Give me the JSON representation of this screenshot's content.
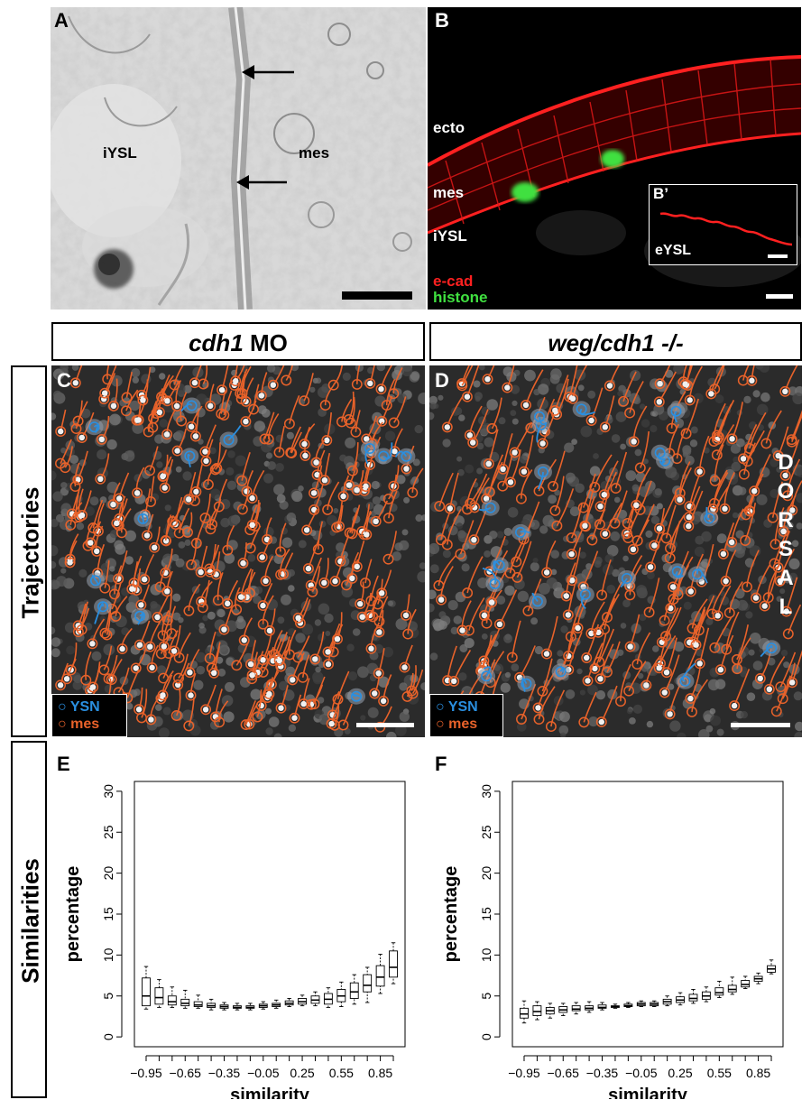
{
  "colors": {
    "trajectory_orange": "#e8622a",
    "trajectory_blue": "#2a8fe0",
    "ecad_red": "#ff2020",
    "histone_green": "#40e040"
  },
  "panelA": {
    "letter": "A",
    "iysl": "iYSL",
    "mes": "mes"
  },
  "panelB": {
    "letter": "B",
    "ecto": "ecto",
    "mes": "mes",
    "iysl": "iYSL",
    "inset_letter": "B’",
    "inset_label": "eYSL",
    "legend_ecad": "e-cad",
    "legend_histone": "histone"
  },
  "headers": {
    "left_bold": "cdh1",
    "left_rest": " MO",
    "right": "weg/cdh1 -/-"
  },
  "rows": {
    "trajectories": "Trajectories",
    "similarities": "Similarities"
  },
  "panelC": {
    "letter": "C",
    "legend_ysn": "YSN",
    "legend_mes": "mes"
  },
  "panelD": {
    "letter": "D",
    "legend_ysn": "YSN",
    "legend_mes": "mes",
    "dorsal": [
      "D",
      "O",
      "R",
      "S",
      "A",
      "L"
    ]
  },
  "chart_data": [
    {
      "panel": "E",
      "type": "box",
      "xlabel": "similarity",
      "ylabel": "percentage",
      "ylim": [
        0,
        30
      ],
      "yticks": [
        0,
        5,
        10,
        15,
        20,
        25,
        30
      ],
      "xtick_labels": [
        "-0.95",
        "-0.65",
        "-0.35",
        "-0.05",
        "0.25",
        "0.55",
        "0.85"
      ],
      "categories": [
        -0.95,
        -0.85,
        -0.75,
        -0.65,
        -0.55,
        -0.45,
        -0.35,
        -0.25,
        -0.15,
        -0.05,
        0.05,
        0.15,
        0.25,
        0.35,
        0.45,
        0.55,
        0.65,
        0.75,
        0.85,
        0.95
      ],
      "boxes": [
        {
          "min": 3.4,
          "q1": 3.8,
          "median": 5.0,
          "q3": 7.2,
          "max": 8.6
        },
        {
          "min": 3.6,
          "q1": 4.0,
          "median": 4.8,
          "q3": 6.0,
          "max": 7.0
        },
        {
          "min": 3.6,
          "q1": 3.9,
          "median": 4.3,
          "q3": 5.0,
          "max": 6.1
        },
        {
          "min": 3.5,
          "q1": 3.8,
          "median": 4.1,
          "q3": 4.6,
          "max": 5.7
        },
        {
          "min": 3.5,
          "q1": 3.7,
          "median": 3.9,
          "q3": 4.3,
          "max": 5.1
        },
        {
          "min": 3.3,
          "q1": 3.6,
          "median": 3.8,
          "q3": 4.1,
          "max": 4.6
        },
        {
          "min": 3.3,
          "q1": 3.5,
          "median": 3.7,
          "q3": 3.9,
          "max": 4.2
        },
        {
          "min": 3.3,
          "q1": 3.5,
          "median": 3.6,
          "q3": 3.8,
          "max": 4.1
        },
        {
          "min": 3.3,
          "q1": 3.5,
          "median": 3.6,
          "q3": 3.8,
          "max": 4.1
        },
        {
          "min": 3.4,
          "q1": 3.6,
          "median": 3.8,
          "q3": 4.0,
          "max": 4.3
        },
        {
          "min": 3.5,
          "q1": 3.7,
          "median": 3.9,
          "q3": 4.1,
          "max": 4.5
        },
        {
          "min": 3.7,
          "q1": 3.9,
          "median": 4.1,
          "q3": 4.4,
          "max": 4.7
        },
        {
          "min": 3.8,
          "q1": 4.0,
          "median": 4.3,
          "q3": 4.7,
          "max": 5.1
        },
        {
          "min": 3.8,
          "q1": 4.1,
          "median": 4.5,
          "q3": 5.0,
          "max": 5.5
        },
        {
          "min": 3.6,
          "q1": 4.0,
          "median": 4.6,
          "q3": 5.3,
          "max": 6.0
        },
        {
          "min": 3.7,
          "q1": 4.3,
          "median": 5.0,
          "q3": 5.8,
          "max": 6.7
        },
        {
          "min": 4.0,
          "q1": 4.7,
          "median": 5.5,
          "q3": 6.6,
          "max": 7.6
        },
        {
          "min": 4.2,
          "q1": 5.5,
          "median": 6.3,
          "q3": 7.6,
          "max": 8.5
        },
        {
          "min": 5.3,
          "q1": 6.2,
          "median": 7.3,
          "q3": 8.7,
          "max": 10.1
        },
        {
          "min": 6.5,
          "q1": 7.3,
          "median": 8.5,
          "q3": 10.5,
          "max": 11.5
        }
      ]
    },
    {
      "panel": "F",
      "type": "box",
      "xlabel": "similarity",
      "ylabel": "percentage",
      "ylim": [
        0,
        30
      ],
      "yticks": [
        0,
        5,
        10,
        15,
        20,
        25,
        30
      ],
      "xtick_labels": [
        "-0.95",
        "-0.65",
        "-0.35",
        "-0.05",
        "0.25",
        "0.55",
        "0.85"
      ],
      "categories": [
        -0.95,
        -0.85,
        -0.75,
        -0.65,
        -0.55,
        -0.45,
        -0.35,
        -0.25,
        -0.15,
        -0.05,
        0.05,
        0.15,
        0.25,
        0.35,
        0.45,
        0.55,
        0.65,
        0.75,
        0.85,
        0.95
      ],
      "boxes": [
        {
          "min": 1.7,
          "q1": 2.3,
          "median": 2.8,
          "q3": 3.5,
          "max": 4.4
        },
        {
          "min": 2.1,
          "q1": 2.6,
          "median": 3.1,
          "q3": 3.8,
          "max": 4.3
        },
        {
          "min": 2.3,
          "q1": 2.8,
          "median": 3.2,
          "q3": 3.6,
          "max": 4.1
        },
        {
          "min": 2.6,
          "q1": 3.0,
          "median": 3.3,
          "q3": 3.7,
          "max": 4.1
        },
        {
          "min": 2.8,
          "q1": 3.2,
          "median": 3.4,
          "q3": 3.8,
          "max": 4.2
        },
        {
          "min": 3.0,
          "q1": 3.3,
          "median": 3.5,
          "q3": 3.8,
          "max": 4.3
        },
        {
          "min": 3.3,
          "q1": 3.5,
          "median": 3.6,
          "q3": 3.9,
          "max": 4.2
        },
        {
          "min": 3.5,
          "q1": 3.6,
          "median": 3.7,
          "q3": 3.8,
          "max": 4.0
        },
        {
          "min": 3.6,
          "q1": 3.7,
          "median": 3.8,
          "q3": 4.0,
          "max": 4.2
        },
        {
          "min": 3.7,
          "q1": 3.8,
          "median": 4.0,
          "q3": 4.2,
          "max": 4.4
        },
        {
          "min": 3.7,
          "q1": 3.8,
          "median": 4.0,
          "q3": 4.2,
          "max": 4.4
        },
        {
          "min": 3.8,
          "q1": 4.0,
          "median": 4.3,
          "q3": 4.6,
          "max": 5.0
        },
        {
          "min": 3.9,
          "q1": 4.2,
          "median": 4.5,
          "q3": 4.9,
          "max": 5.4
        },
        {
          "min": 4.1,
          "q1": 4.4,
          "median": 4.7,
          "q3": 5.2,
          "max": 5.8
        },
        {
          "min": 4.3,
          "q1": 4.6,
          "median": 5.0,
          "q3": 5.5,
          "max": 6.1
        },
        {
          "min": 4.8,
          "q1": 5.1,
          "median": 5.4,
          "q3": 6.0,
          "max": 6.8
        },
        {
          "min": 5.2,
          "q1": 5.5,
          "median": 5.8,
          "q3": 6.3,
          "max": 7.3
        },
        {
          "min": 5.9,
          "q1": 6.1,
          "median": 6.4,
          "q3": 6.9,
          "max": 7.4
        },
        {
          "min": 6.5,
          "q1": 6.8,
          "median": 7.1,
          "q3": 7.4,
          "max": 7.8
        },
        {
          "min": 7.7,
          "q1": 7.9,
          "median": 8.3,
          "q3": 8.7,
          "max": 9.4
        }
      ]
    }
  ]
}
